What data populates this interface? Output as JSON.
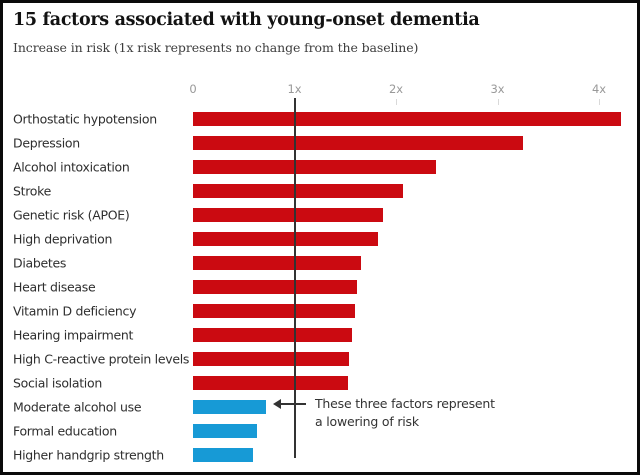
{
  "header": {
    "title": "15 factors associated with young-onset dementia",
    "subtitle": "Increase in risk (1x risk represents no change from the baseline)"
  },
  "colors": {
    "increase_bar": "#cb0a11",
    "decrease_bar": "#179ad6",
    "baseline_line": "#333333",
    "tick_label": "#999999",
    "tick_mark": "#d9d9d9",
    "label_text": "#2e2e2e",
    "annotation_text": "#333333",
    "background": "#ffffff",
    "frame_border": "#0a0a0a"
  },
  "chart_data": {
    "type": "bar",
    "orientation": "horizontal",
    "title": "15 factors associated with young-onset dementia",
    "subtitle": "Increase in risk (1x risk represents no change from the baseline)",
    "xlabel": "",
    "ylabel": "",
    "xlim": [
      0,
      4.35
    ],
    "grid": false,
    "x_ticks": [
      {
        "label": "0",
        "value": 0,
        "has_mark": false
      },
      {
        "label": "1x",
        "value": 1,
        "has_mark": false
      },
      {
        "label": "2x",
        "value": 2,
        "has_mark": true
      },
      {
        "label": "3x",
        "value": 3,
        "has_mark": true
      },
      {
        "label": "4x",
        "value": 4,
        "has_mark": true
      }
    ],
    "baseline": {
      "value": 1,
      "label": "1x"
    },
    "factors": [
      {
        "label": "Orthostatic hypotension",
        "value": 4.22,
        "direction": "increase"
      },
      {
        "label": "Depression",
        "value": 3.25,
        "direction": "increase"
      },
      {
        "label": "Alcohol intoxication",
        "value": 2.39,
        "direction": "increase"
      },
      {
        "label": "Stroke",
        "value": 2.07,
        "direction": "increase"
      },
      {
        "label": "Genetic risk (APOE)",
        "value": 1.87,
        "direction": "increase"
      },
      {
        "label": "High deprivation",
        "value": 1.82,
        "direction": "increase"
      },
      {
        "label": "Diabetes",
        "value": 1.66,
        "direction": "increase"
      },
      {
        "label": "Heart disease",
        "value": 1.62,
        "direction": "increase"
      },
      {
        "label": "Vitamin D deficiency",
        "value": 1.6,
        "direction": "increase"
      },
      {
        "label": "Hearing impairment",
        "value": 1.57,
        "direction": "increase"
      },
      {
        "label": "High C-reactive protein levels",
        "value": 1.54,
        "direction": "increase"
      },
      {
        "label": "Social isolation",
        "value": 1.53,
        "direction": "increase"
      },
      {
        "label": "Moderate alcohol use",
        "value": 0.72,
        "direction": "decrease"
      },
      {
        "label": "Formal education",
        "value": 0.63,
        "direction": "decrease"
      },
      {
        "label": "Higher handgrip strength",
        "value": 0.59,
        "direction": "decrease"
      }
    ],
    "annotation": {
      "line1": "These three factors represent",
      "line2": "a lowering of risk",
      "target": "Moderate alcohol use"
    }
  },
  "layout_hints": {
    "legend": "none",
    "baseline_note": "dark vertical rule at 1x spanning all bars"
  }
}
